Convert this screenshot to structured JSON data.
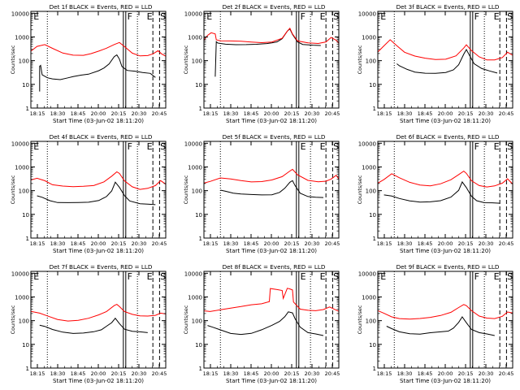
{
  "figure": {
    "background": "#ffffff",
    "axis_color": "#000000",
    "events_color": "#000000",
    "lld_color": "#ff0000"
  },
  "chart_data": [
    {
      "type": "line",
      "detector": "1f",
      "title": "Det 1f BLACK = Events, RED = LLD",
      "xlabel": "Start Time (03-Jun-02 18:11:20)",
      "ylabel": "Counts/sec",
      "xticks": [
        "18:15",
        "18:30",
        "18:45",
        "20:00",
        "20:15",
        "20:30",
        "20:45"
      ],
      "yticks": [
        "1",
        "10",
        "100",
        "1000",
        "10000"
      ],
      "ylim": [
        1,
        12000
      ],
      "xlim": [
        18.18,
        20.8
      ],
      "markers": [
        "E",
        "F",
        "E",
        "S"
      ],
      "series": [
        {
          "name": "Events",
          "x": [
            18.35,
            18.35,
            18.37,
            18.4,
            18.5,
            18.6,
            18.75,
            18.9,
            19.0,
            19.15,
            19.3,
            19.5,
            19.6,
            19.7,
            19.8,
            19.85,
            19.9,
            19.95,
            20.05,
            20.2,
            20.35,
            20.5,
            20.6
          ],
          "values": [
            5,
            55,
            60,
            25,
            20,
            18,
            16,
            18,
            20,
            24,
            28,
            40,
            50,
            70,
            140,
            170,
            120,
            60,
            40,
            35,
            30,
            28,
            20
          ]
        },
        {
          "name": "LLD",
          "x": [
            18.18,
            18.3,
            18.45,
            18.6,
            18.8,
            19.0,
            19.2,
            19.35,
            19.5,
            19.65,
            19.8,
            19.9,
            20.0,
            20.15,
            20.3,
            20.45,
            20.55,
            20.65,
            20.72,
            20.8
          ],
          "values": [
            250,
            380,
            450,
            330,
            220,
            180,
            170,
            190,
            240,
            330,
            500,
            620,
            400,
            200,
            150,
            160,
            200,
            280,
            200,
            150
          ]
        }
      ]
    },
    {
      "type": "line",
      "detector": "2f",
      "title": "Det 2f BLACK = Events, RED = LLD",
      "xlabel": "Start Time (03-Jun-02 18:11:20)",
      "ylabel": "Counts/sec",
      "xticks": [
        "18:15",
        "18:30",
        "18:45",
        "20:00",
        "20:15",
        "20:30",
        "20:45"
      ],
      "yticks": [
        "1",
        "10",
        "100",
        "1000",
        "10000"
      ],
      "ylim": [
        1,
        12000
      ],
      "xlim": [
        18.18,
        20.8
      ],
      "markers": [
        "E",
        "F",
        "E",
        "S"
      ],
      "series": [
        {
          "name": "Events",
          "x": [
            18.4,
            18.42,
            18.45,
            18.6,
            18.8,
            19.0,
            19.2,
            19.4,
            19.5,
            19.6,
            19.7,
            19.8,
            19.85,
            19.9,
            20.0,
            20.1,
            20.3,
            20.45
          ],
          "values": [
            20,
            600,
            550,
            520,
            500,
            480,
            470,
            500,
            550,
            650,
            900,
            1800,
            2100,
            1200,
            600,
            500,
            480,
            450
          ]
        },
        {
          "name": "LLD",
          "x": [
            18.18,
            18.25,
            18.32,
            18.4,
            18.42,
            18.5,
            18.7,
            18.9,
            19.1,
            19.3,
            19.5,
            19.7,
            19.8,
            19.85,
            19.9,
            20.0,
            20.2,
            20.4,
            20.55,
            20.65,
            20.75,
            20.8
          ],
          "values": [
            700,
            1100,
            1500,
            1400,
            800,
            700,
            650,
            620,
            600,
            600,
            650,
            900,
            1700,
            2200,
            1300,
            700,
            600,
            550,
            600,
            900,
            700,
            550
          ]
        }
      ]
    },
    {
      "type": "line",
      "detector": "3f",
      "title": "Det 3f BLACK = Events, RED = LLD",
      "xlabel": "Start Time (03-Jun-02 18:11:20)",
      "ylabel": "Counts/sec",
      "xticks": [
        "18:15",
        "18:30",
        "18:45",
        "20:00",
        "20:15",
        "20:30",
        "20:45"
      ],
      "yticks": [
        "1",
        "10",
        "100",
        "1000",
        "10000"
      ],
      "ylim": [
        1,
        12000
      ],
      "xlim": [
        18.18,
        20.8
      ],
      "markers": [
        "E",
        "F",
        "E",
        "S"
      ],
      "series": [
        {
          "name": "Events",
          "x": [
            18.55,
            18.6,
            18.75,
            18.9,
            19.1,
            19.3,
            19.5,
            19.65,
            19.75,
            19.85,
            19.9,
            19.95,
            20.05,
            20.2,
            20.35,
            20.5
          ],
          "values": [
            70,
            60,
            45,
            35,
            30,
            28,
            30,
            40,
            70,
            200,
            300,
            180,
            70,
            45,
            38,
            32
          ]
        },
        {
          "name": "LLD",
          "x": [
            18.18,
            18.3,
            18.42,
            18.55,
            18.7,
            18.9,
            19.1,
            19.3,
            19.5,
            19.7,
            19.85,
            19.9,
            20.0,
            20.15,
            20.3,
            20.45,
            20.6,
            20.7,
            20.8
          ],
          "values": [
            220,
            420,
            800,
            450,
            230,
            150,
            120,
            110,
            120,
            170,
            350,
            450,
            250,
            140,
            110,
            115,
            140,
            220,
            160
          ]
        }
      ]
    },
    {
      "type": "line",
      "detector": "4f",
      "title": "Det 4f BLACK = Events, RED = LLD",
      "xlabel": "Start Time (03-Jun-02 18:11:20)",
      "ylabel": "Counts/sec",
      "xticks": [
        "18:15",
        "18:30",
        "18:45",
        "20:00",
        "20:15",
        "20:30",
        "20:45"
      ],
      "yticks": [
        "1",
        "10",
        "100",
        "1000",
        "10000"
      ],
      "ylim": [
        1,
        12000
      ],
      "xlim": [
        18.18,
        20.8
      ],
      "markers": [
        "E",
        "F",
        "E",
        "S"
      ],
      "series": [
        {
          "name": "Events",
          "x": [
            18.3,
            18.4,
            18.55,
            18.7,
            18.9,
            19.1,
            19.3,
            19.5,
            19.65,
            19.75,
            19.82,
            19.9,
            20.0,
            20.1,
            20.3,
            20.45,
            20.6
          ],
          "values": [
            60,
            55,
            40,
            32,
            30,
            30,
            32,
            40,
            60,
            100,
            220,
            130,
            60,
            38,
            30,
            28,
            25
          ]
        },
        {
          "name": "LLD",
          "x": [
            18.18,
            18.3,
            18.45,
            18.6,
            18.8,
            19.0,
            19.2,
            19.4,
            19.6,
            19.75,
            19.85,
            19.9,
            20.0,
            20.15,
            20.3,
            20.45,
            20.6,
            20.7,
            20.8
          ],
          "values": [
            280,
            350,
            280,
            180,
            150,
            140,
            150,
            170,
            250,
            420,
            600,
            500,
            250,
            150,
            120,
            130,
            160,
            250,
            180
          ]
        }
      ]
    },
    {
      "type": "line",
      "detector": "5f",
      "title": "Det 5f BLACK = Events, RED = LLD",
      "xlabel": "Start Time (03-Jun-02 18:11:20)",
      "ylabel": "Counts/sec",
      "xticks": [
        "18:15",
        "18:30",
        "18:45",
        "20:00",
        "20:15",
        "20:30",
        "20:45"
      ],
      "yticks": [
        "1",
        "10",
        "100",
        "1000",
        "10000"
      ],
      "ylim": [
        1,
        12000
      ],
      "xlim": [
        18.18,
        20.8
      ],
      "markers": [
        "E",
        "E",
        "S"
      ],
      "series": [
        {
          "name": "Events",
          "x": [
            18.5,
            18.6,
            18.75,
            18.9,
            19.1,
            19.3,
            19.5,
            19.65,
            19.75,
            19.85,
            19.9,
            19.95,
            20.05,
            20.2,
            20.35,
            20.5
          ],
          "values": [
            110,
            100,
            80,
            70,
            65,
            65,
            70,
            90,
            130,
            220,
            250,
            160,
            80,
            60,
            55,
            50
          ]
        },
        {
          "name": "LLD",
          "x": [
            18.18,
            18.3,
            18.5,
            18.7,
            18.9,
            19.1,
            19.3,
            19.5,
            19.7,
            19.85,
            19.9,
            20.0,
            20.2,
            20.4,
            20.55,
            20.65,
            20.75,
            20.8
          ],
          "values": [
            220,
            260,
            350,
            300,
            250,
            230,
            250,
            300,
            400,
            650,
            750,
            450,
            280,
            250,
            260,
            300,
            420,
            300
          ]
        }
      ]
    },
    {
      "type": "line",
      "detector": "6f",
      "title": "Det 6f BLACK = Events, RED = LLD",
      "xlabel": "Start Time (03-Jun-02 18:11:20)",
      "ylabel": "Counts/sec",
      "xticks": [
        "18:15",
        "18:30",
        "18:45",
        "20:00",
        "20:15",
        "20:30",
        "20:45"
      ],
      "yticks": [
        "1",
        "10",
        "100",
        "1000",
        "10000"
      ],
      "ylim": [
        1,
        12000
      ],
      "xlim": [
        18.18,
        20.8
      ],
      "markers": [
        "F",
        "E",
        "S"
      ],
      "series": [
        {
          "name": "Events",
          "x": [
            18.3,
            18.45,
            18.6,
            18.8,
            19.0,
            19.2,
            19.4,
            19.6,
            19.75,
            19.82,
            19.9,
            20.0,
            20.1,
            20.25,
            20.4,
            20.55
          ],
          "values": [
            70,
            60,
            45,
            35,
            32,
            35,
            40,
            55,
            100,
            220,
            130,
            60,
            40,
            32,
            30,
            28
          ]
        },
        {
          "name": "LLD",
          "x": [
            18.18,
            18.3,
            18.45,
            18.6,
            18.8,
            19.0,
            19.2,
            19.4,
            19.6,
            19.75,
            19.85,
            19.9,
            20.0,
            20.15,
            20.3,
            20.45,
            20.6,
            20.7,
            20.8
          ],
          "values": [
            220,
            300,
            500,
            330,
            220,
            180,
            170,
            200,
            280,
            450,
            650,
            550,
            280,
            170,
            140,
            150,
            200,
            320,
            200
          ]
        }
      ]
    },
    {
      "type": "line",
      "detector": "7f",
      "title": "Det 7f BLACK = Events, RED = LLD",
      "xlabel": "Start Time (03-Jun-02 18:11:20)",
      "ylabel": "Counts/sec",
      "xticks": [
        "18:15",
        "18:30",
        "18:45",
        "20:00",
        "20:15",
        "20:30",
        "20:45"
      ],
      "yticks": [
        "1",
        "10",
        "100",
        "1000",
        "10000"
      ],
      "ylim": [
        1,
        12000
      ],
      "xlim": [
        18.18,
        20.8
      ],
      "markers": [
        "E",
        "F",
        "E",
        "S"
      ],
      "series": [
        {
          "name": "Events",
          "x": [
            18.35,
            18.45,
            18.6,
            18.8,
            19.0,
            19.2,
            19.4,
            19.55,
            19.65,
            19.75,
            19.82,
            19.9,
            20.0,
            20.15,
            20.3,
            20.45
          ],
          "values": [
            65,
            55,
            40,
            32,
            30,
            32,
            35,
            40,
            55,
            80,
            130,
            80,
            45,
            35,
            32,
            30
          ]
        },
        {
          "name": "LLD",
          "x": [
            18.18,
            18.35,
            18.5,
            18.7,
            18.9,
            19.1,
            19.3,
            19.5,
            19.65,
            19.8,
            19.85,
            19.9,
            20.0,
            20.15,
            20.3,
            20.45,
            20.6,
            20.7,
            20.8
          ],
          "values": [
            250,
            200,
            150,
            110,
            100,
            110,
            130,
            170,
            230,
            420,
            500,
            420,
            250,
            180,
            150,
            150,
            170,
            220,
            200
          ]
        }
      ]
    },
    {
      "type": "line",
      "detector": "8f",
      "title": "Det 8f BLACK = Events, RED = LLD",
      "xlabel": "Start Time (03-Jun-02 18:11:20)",
      "ylabel": "Counts/sec",
      "xticks": [
        "18:15",
        "18:30",
        "18:45",
        "20:00",
        "20:15",
        "20:30",
        "20:45"
      ],
      "yticks": [
        "1",
        "10",
        "100",
        "1000",
        "10000"
      ],
      "ylim": [
        1,
        12000
      ],
      "xlim": [
        18.18,
        20.8
      ],
      "markers": [
        "E",
        "E",
        "S"
      ],
      "series": [
        {
          "name": "Events",
          "x": [
            18.25,
            18.35,
            18.5,
            18.7,
            18.9,
            19.1,
            19.3,
            19.5,
            19.65,
            19.75,
            19.82,
            19.9,
            19.95,
            20.05,
            20.2,
            20.35,
            20.5
          ],
          "values": [
            60,
            50,
            40,
            30,
            28,
            30,
            40,
            60,
            90,
            150,
            250,
            220,
            120,
            50,
            30,
            28,
            25
          ]
        },
        {
          "name": "LLD",
          "x": [
            18.18,
            18.3,
            18.5,
            18.7,
            18.9,
            19.1,
            19.3,
            19.45,
            19.47,
            19.6,
            19.7,
            19.72,
            19.78,
            19.8,
            19.85,
            19.9,
            19.92,
            20.05,
            20.2,
            20.35,
            20.5,
            20.62,
            20.7,
            20.8
          ],
          "values": [
            250,
            230,
            280,
            350,
            420,
            480,
            500,
            600,
            2200,
            2100,
            2000,
            900,
            1800,
            2200,
            2100,
            2000,
            650,
            320,
            270,
            250,
            280,
            380,
            330,
            260
          ]
        }
      ]
    },
    {
      "type": "line",
      "detector": "9f",
      "title": "Det 9f BLACK = Events, RED = LLD",
      "xlabel": "Start Time (03-Jun-02 18:11:20)",
      "ylabel": "Counts/sec",
      "xticks": [
        "18:15",
        "18:30",
        "18:45",
        "20:00",
        "20:15",
        "20:30",
        "20:45"
      ],
      "yticks": [
        "1",
        "10",
        "100",
        "1000",
        "10000"
      ],
      "ylim": [
        1,
        12000
      ],
      "xlim": [
        18.18,
        20.8
      ],
      "markers": [
        "E",
        "F",
        "E",
        "S"
      ],
      "series": [
        {
          "name": "Events",
          "x": [
            18.35,
            18.45,
            18.6,
            18.8,
            19.0,
            19.2,
            19.4,
            19.55,
            19.65,
            19.75,
            19.82,
            19.9,
            20.0,
            20.15,
            20.3,
            20.45
          ],
          "values": [
            55,
            45,
            35,
            30,
            28,
            30,
            32,
            35,
            50,
            90,
            150,
            80,
            40,
            30,
            28,
            25
          ]
        },
        {
          "name": "LLD",
          "x": [
            18.18,
            18.3,
            18.45,
            18.6,
            18.8,
            19.0,
            19.2,
            19.4,
            19.6,
            19.75,
            19.85,
            19.9,
            20.0,
            20.15,
            20.3,
            20.45,
            20.6,
            20.7,
            20.8
          ],
          "values": [
            250,
            200,
            150,
            130,
            120,
            120,
            130,
            160,
            230,
            380,
            500,
            420,
            250,
            150,
            130,
            130,
            160,
            230,
            200
          ]
        }
      ]
    }
  ]
}
